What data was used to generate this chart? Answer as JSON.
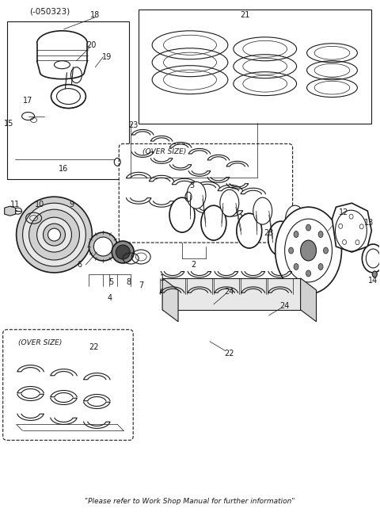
{
  "title": "(-050323)",
  "footer": "\"Please refer to Work Shop Manual for further information\"",
  "background_color": "#ffffff",
  "line_color": "#1a1a1a",
  "fig_width": 4.8,
  "fig_height": 6.56,
  "dpi": 100
}
